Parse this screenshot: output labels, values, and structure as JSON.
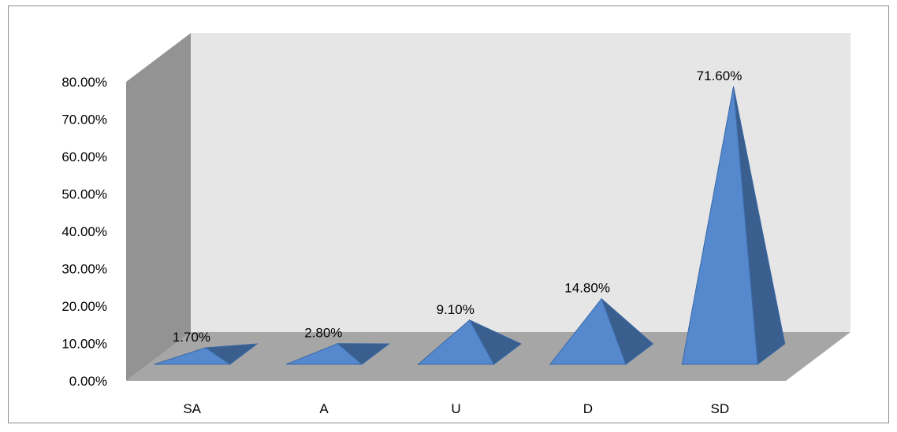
{
  "chart_data": {
    "type": "bar",
    "bar_shape": "3d-pyramid",
    "categories": [
      "SA",
      "A",
      "U",
      "D",
      "SD"
    ],
    "values": [
      1.7,
      2.8,
      9.1,
      14.8,
      71.6
    ],
    "data_labels": [
      "1.70%",
      "2.80%",
      "9.10%",
      "14.80%",
      "71.60%"
    ],
    "y_ticks": [
      "0.00%",
      "10.00%",
      "20.00%",
      "30.00%",
      "40.00%",
      "50.00%",
      "60.00%",
      "70.00%",
      "80.00%"
    ],
    "ylim": [
      0,
      80
    ],
    "grid": false,
    "legend": "none",
    "colors": {
      "bar_front": "#5588cc",
      "bar_side": "#3a5f8e",
      "bar_edge": "#3a6aa8",
      "back_wall": "#e6e6e6",
      "side_wall": "#939393",
      "floor": "#a6a6a6",
      "frame": "#8c8c8c"
    }
  }
}
